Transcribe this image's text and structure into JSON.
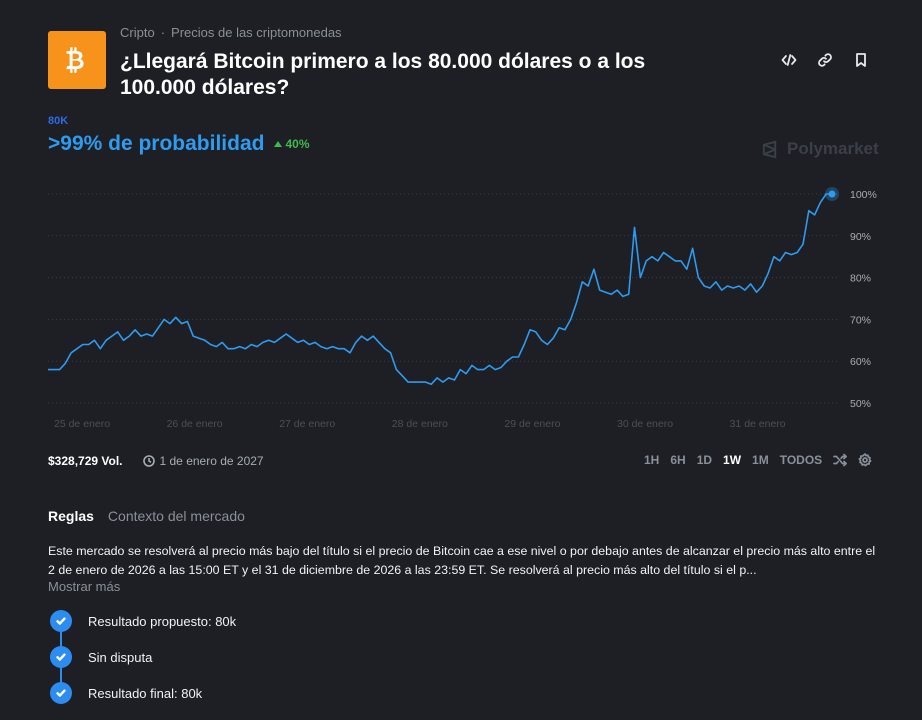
{
  "breadcrumb": {
    "category": "Cripto",
    "separator": "·",
    "subcategory": "Precios de las criptomonedas"
  },
  "market": {
    "title": "¿Llegará Bitcoin primero a los 80.000 dólares o a los 100.000 dólares?",
    "outcome_label": "80K",
    "probability_text": ">99% de probabilidad",
    "delta_text": "40%",
    "watermark": "Polymarket",
    "volume": "$328,729 Vol.",
    "end_date": "1 de enero de 2027"
  },
  "icons": {
    "logo": "bitcoin-icon",
    "embed": "code-icon",
    "link": "link-icon",
    "bookmark": "bookmark-icon",
    "delta": "triangle-up-icon",
    "clock": "clock-icon",
    "shuffle": "shuffle-icon",
    "settings": "gear-icon",
    "check": "check-icon"
  },
  "colors": {
    "accent": "#2e9bf0",
    "outcome": "#2d6be4",
    "positive": "#3fb950",
    "bitcoin": "#f7931a",
    "background": "#1d1f24"
  },
  "time_ranges": [
    {
      "label": "1H",
      "active": false
    },
    {
      "label": "6H",
      "active": false
    },
    {
      "label": "1D",
      "active": false
    },
    {
      "label": "1W",
      "active": true
    },
    {
      "label": "1M",
      "active": false
    },
    {
      "label": "TODOS",
      "active": false
    }
  ],
  "tabs": [
    {
      "label": "Reglas",
      "active": true
    },
    {
      "label": "Contexto del mercado",
      "active": false
    }
  ],
  "rules_text": "Este mercado se resolverá al precio más bajo del título si el precio de Bitcoin cae a ese nivel o por debajo antes de alcanzar el precio más alto entre el 2 de enero de 2026 a las 15:00 ET y el 31 de diciembre de 2026 a las 23:59 ET. Se resolverá al precio más alto del título si el p...",
  "show_more": "Mostrar más",
  "resolution_steps": [
    {
      "label": "Resultado propuesto: 80k"
    },
    {
      "label": "Sin disputa"
    },
    {
      "label": "Resultado final: 80k"
    }
  ],
  "chart_data": {
    "type": "line",
    "series": [
      {
        "values": [
          58,
          58,
          58,
          59.5,
          62,
          63,
          64,
          64,
          65,
          63,
          65,
          66,
          67,
          65,
          66,
          67.5,
          66,
          66.5,
          66,
          68,
          70,
          69,
          70.5,
          69,
          69.5,
          66,
          65.5,
          65,
          64,
          63.5,
          64.5,
          63,
          63,
          63.5,
          63,
          64,
          63.5,
          64.5,
          65,
          64.5,
          65.5,
          66.5,
          65.5,
          64.5,
          65,
          64,
          64.5,
          63.5,
          63,
          63.5,
          63,
          63,
          62,
          64.5,
          66,
          65,
          66,
          64.5,
          63,
          62,
          58,
          56.5,
          55,
          55,
          55,
          55,
          54.5,
          56,
          55,
          56,
          55.5,
          58,
          57,
          59,
          58,
          58,
          59,
          58,
          58.5,
          60,
          61,
          61,
          64,
          67.5,
          67,
          65,
          64,
          65.5,
          68,
          67.5,
          70,
          74,
          79,
          78,
          82,
          77,
          76.5,
          76,
          77,
          75.5,
          76,
          92,
          80,
          84,
          85,
          84,
          86,
          85,
          84,
          84,
          82,
          87,
          80,
          78,
          77.5,
          79,
          77,
          78,
          77.5,
          78,
          77,
          78.5,
          76.5,
          78,
          81,
          85,
          84,
          86,
          85.5,
          86,
          88,
          96,
          95,
          98,
          100,
          100
        ]
      }
    ],
    "x_tick_labels": [
      "25 de enero",
      "26 de enero",
      "27 de enero",
      "28 de enero",
      "29 de enero",
      "30 de enero",
      "31 de enero"
    ],
    "y_tick_labels": [
      "100%",
      "90%",
      "80%",
      "70%",
      "60%",
      "50%"
    ],
    "y_ticks": [
      100,
      90,
      80,
      70,
      60,
      50
    ],
    "ylim": [
      48,
      100
    ],
    "grid": true,
    "grid_style": "dotted-horizontal",
    "axis_position": "right",
    "line_color": "#2e9bf0"
  }
}
